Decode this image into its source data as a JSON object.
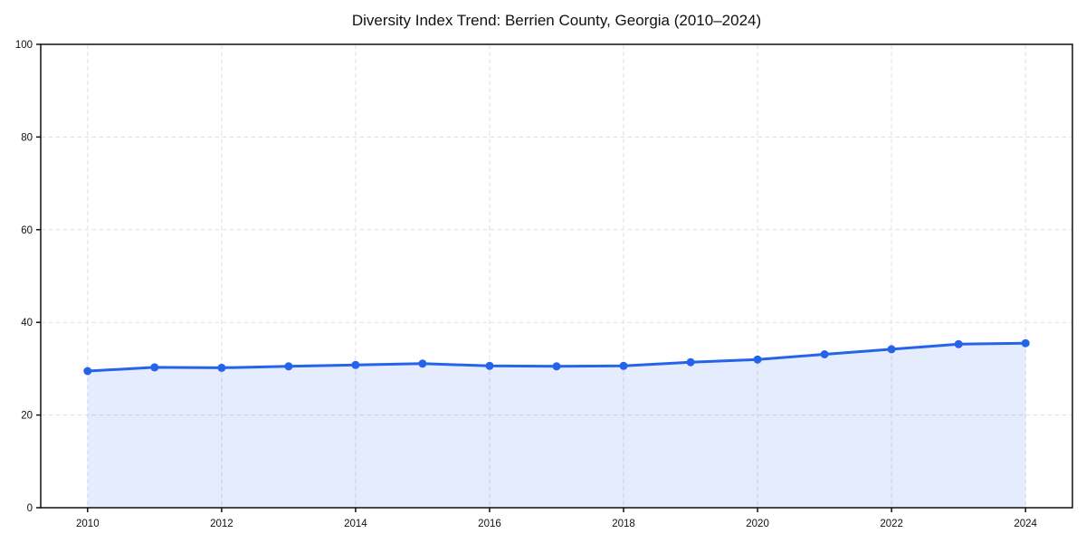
{
  "page": {
    "background": "#ffffff"
  },
  "chart_data": {
    "type": "area",
    "title": "Diversity Index Trend: Berrien County, Georgia (2010–2024)",
    "x": [
      2010,
      2011,
      2012,
      2013,
      2014,
      2015,
      2016,
      2017,
      2018,
      2019,
      2020,
      2021,
      2022,
      2023,
      2024
    ],
    "series": [
      {
        "name": "Diversity Index",
        "values": [
          29.5,
          30.3,
          30.2,
          30.5,
          30.8,
          31.1,
          30.6,
          30.5,
          30.6,
          31.4,
          32.0,
          33.1,
          34.2,
          35.3,
          35.5
        ]
      }
    ],
    "xlabel": "",
    "ylabel": "",
    "xlim": [
      2009.3,
      2024.7
    ],
    "ylim": [
      0,
      100
    ],
    "xticks": [
      2010,
      2012,
      2014,
      2016,
      2018,
      2020,
      2022,
      2024
    ],
    "yticks": [
      0,
      20,
      40,
      60,
      80,
      100
    ],
    "grid": true,
    "grid_style": "dashed",
    "legend_position": "none",
    "marker": "circle",
    "marker_radius": 4.5,
    "line_width": 3,
    "colors": {
      "line": "#2563eb",
      "marker": "#2563eb",
      "fill": "#2563eb",
      "grid": "#e0e0e0",
      "spine": "#000000",
      "tick_text": "#111111",
      "title_text": "#111111",
      "background": "#ffffff"
    },
    "fill_opacity": 0.12
  }
}
